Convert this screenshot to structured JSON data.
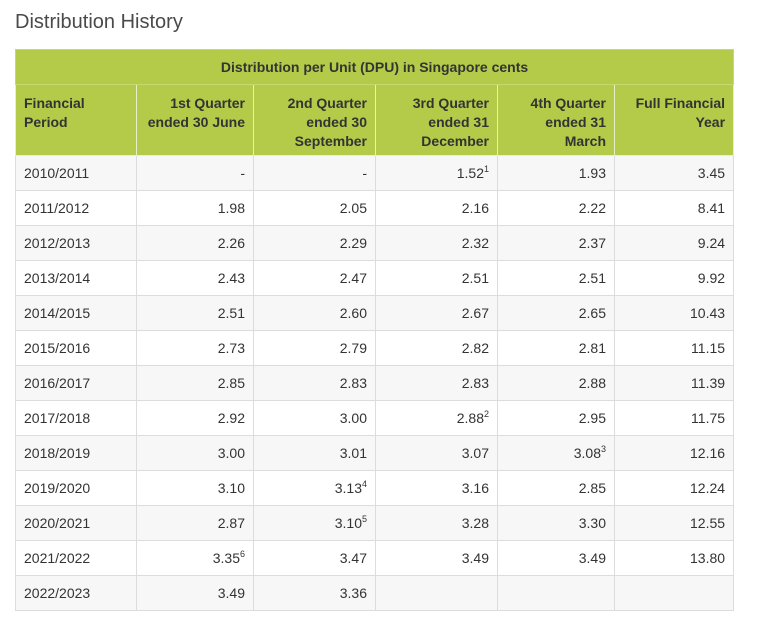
{
  "page": {
    "title": "Distribution History"
  },
  "table": {
    "banner": "Distribution per Unit (DPU) in Singapore cents",
    "headers": [
      [
        "Financial",
        "Period"
      ],
      [
        "1st Quarter",
        "ended 30 June"
      ],
      [
        "2nd Quarter",
        "ended 30",
        "September"
      ],
      [
        "3rd Quarter",
        "ended 31",
        "December"
      ],
      [
        "4th Quarter",
        "ended 31",
        "March"
      ],
      [
        "Full Financial",
        "Year"
      ]
    ],
    "rows": [
      {
        "period": "2010/2011",
        "cells": [
          {
            "value": "-",
            "note": ""
          },
          {
            "value": "-",
            "note": ""
          },
          {
            "value": "1.52",
            "note": "1"
          },
          {
            "value": "1.93",
            "note": ""
          },
          {
            "value": "3.45",
            "note": ""
          }
        ]
      },
      {
        "period": "2011/2012",
        "cells": [
          {
            "value": "1.98",
            "note": ""
          },
          {
            "value": "2.05",
            "note": ""
          },
          {
            "value": "2.16",
            "note": ""
          },
          {
            "value": "2.22",
            "note": ""
          },
          {
            "value": "8.41",
            "note": ""
          }
        ]
      },
      {
        "period": "2012/2013",
        "cells": [
          {
            "value": "2.26",
            "note": ""
          },
          {
            "value": "2.29",
            "note": ""
          },
          {
            "value": "2.32",
            "note": ""
          },
          {
            "value": "2.37",
            "note": ""
          },
          {
            "value": "9.24",
            "note": ""
          }
        ]
      },
      {
        "period": "2013/2014",
        "cells": [
          {
            "value": "2.43",
            "note": ""
          },
          {
            "value": "2.47",
            "note": ""
          },
          {
            "value": "2.51",
            "note": ""
          },
          {
            "value": "2.51",
            "note": ""
          },
          {
            "value": "9.92",
            "note": ""
          }
        ]
      },
      {
        "period": "2014/2015",
        "cells": [
          {
            "value": "2.51",
            "note": ""
          },
          {
            "value": "2.60",
            "note": ""
          },
          {
            "value": "2.67",
            "note": ""
          },
          {
            "value": "2.65",
            "note": ""
          },
          {
            "value": "10.43",
            "note": ""
          }
        ]
      },
      {
        "period": "2015/2016",
        "cells": [
          {
            "value": "2.73",
            "note": ""
          },
          {
            "value": "2.79",
            "note": ""
          },
          {
            "value": "2.82",
            "note": ""
          },
          {
            "value": "2.81",
            "note": ""
          },
          {
            "value": "11.15",
            "note": ""
          }
        ]
      },
      {
        "period": "2016/2017",
        "cells": [
          {
            "value": "2.85",
            "note": ""
          },
          {
            "value": "2.83",
            "note": ""
          },
          {
            "value": "2.83",
            "note": ""
          },
          {
            "value": "2.88",
            "note": ""
          },
          {
            "value": "11.39",
            "note": ""
          }
        ]
      },
      {
        "period": "2017/2018",
        "cells": [
          {
            "value": "2.92",
            "note": ""
          },
          {
            "value": "3.00",
            "note": ""
          },
          {
            "value": "2.88",
            "note": "2"
          },
          {
            "value": "2.95",
            "note": ""
          },
          {
            "value": "11.75",
            "note": ""
          }
        ]
      },
      {
        "period": "2018/2019",
        "cells": [
          {
            "value": "3.00",
            "note": ""
          },
          {
            "value": "3.01",
            "note": ""
          },
          {
            "value": "3.07",
            "note": ""
          },
          {
            "value": "3.08",
            "note": "3"
          },
          {
            "value": "12.16",
            "note": ""
          }
        ]
      },
      {
        "period": "2019/2020",
        "cells": [
          {
            "value": "3.10",
            "note": ""
          },
          {
            "value": "3.13",
            "note": "4"
          },
          {
            "value": "3.16",
            "note": ""
          },
          {
            "value": "2.85",
            "note": ""
          },
          {
            "value": "12.24",
            "note": ""
          }
        ]
      },
      {
        "period": "2020/2021",
        "cells": [
          {
            "value": "2.87",
            "note": ""
          },
          {
            "value": "3.10",
            "note": "5"
          },
          {
            "value": "3.28",
            "note": ""
          },
          {
            "value": "3.30",
            "note": ""
          },
          {
            "value": "12.55",
            "note": ""
          }
        ]
      },
      {
        "period": "2021/2022",
        "cells": [
          {
            "value": "3.35",
            "note": "6"
          },
          {
            "value": "3.47",
            "note": ""
          },
          {
            "value": "3.49",
            "note": ""
          },
          {
            "value": "3.49",
            "note": ""
          },
          {
            "value": "13.80",
            "note": ""
          }
        ]
      },
      {
        "period": "2022/2023",
        "cells": [
          {
            "value": "3.49",
            "note": ""
          },
          {
            "value": "3.36",
            "note": ""
          },
          {
            "value": "",
            "note": ""
          },
          {
            "value": "",
            "note": ""
          },
          {
            "value": "",
            "note": ""
          }
        ]
      }
    ]
  },
  "colors": {
    "header_bg": "#b3cb48",
    "stripe_bg": "#f7f7f7",
    "border": "#dcdcdc"
  }
}
